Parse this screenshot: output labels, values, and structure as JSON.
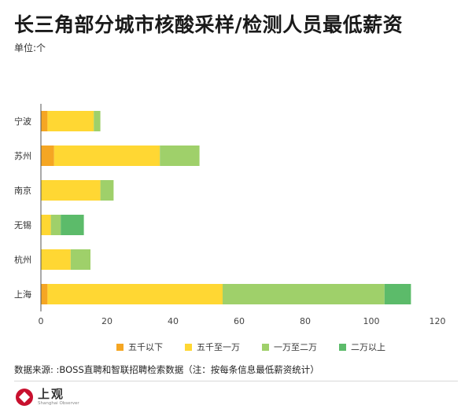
{
  "title": "长三角部分城市核酸采样/检测人员最低薪资",
  "unit": "单位:个",
  "source": "数据来源: :BOSS直聘和智联招聘检索数据（注：按每条信息最低薪资统计）",
  "logo": {
    "cn": "上观",
    "en": "Shanghai Observer"
  },
  "colors": {
    "s1": "#f5a623",
    "s2": "#ffd733",
    "s3": "#9fd06a",
    "s4": "#5cbb6a",
    "axis": "#555555"
  },
  "chart_data": {
    "type": "bar",
    "orientation": "horizontal",
    "stacked": true,
    "categories": [
      "宁波",
      "苏州",
      "南京",
      "无锡",
      "杭州",
      "上海"
    ],
    "series": [
      {
        "name": "五千以下",
        "values": [
          2,
          4,
          0,
          0,
          0,
          2
        ]
      },
      {
        "name": "五千至一万",
        "values": [
          14,
          32,
          18,
          3,
          9,
          53
        ]
      },
      {
        "name": "一万至二万",
        "values": [
          2,
          12,
          4,
          3,
          6,
          49
        ]
      },
      {
        "name": "二万以上",
        "values": [
          0,
          0,
          0,
          7,
          0,
          8
        ]
      }
    ],
    "xlim": [
      0,
      120
    ],
    "xticks": [
      0,
      20,
      40,
      60,
      80,
      100,
      120
    ],
    "xlabel": "",
    "ylabel": "",
    "grid": false,
    "legend": "bottom"
  }
}
